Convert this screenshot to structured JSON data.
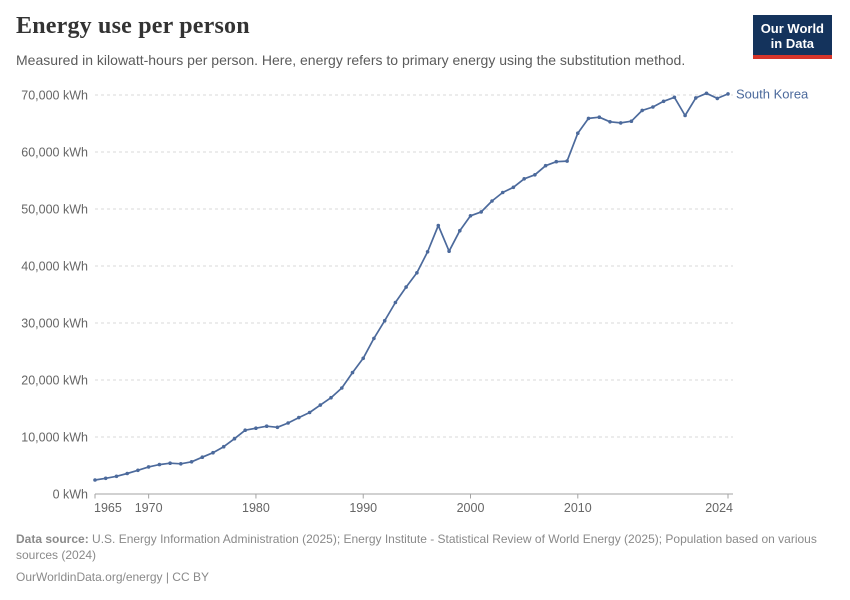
{
  "header": {
    "title": "Energy use per person",
    "subtitle": "Measured in kilowatt-hours per person. Here, energy refers to primary energy using the substitution method.",
    "logo": {
      "line1": "Our World",
      "line2": "in Data"
    }
  },
  "chart_data": {
    "type": "line",
    "title": "Energy use per person",
    "xlabel": "",
    "ylabel": "",
    "xlim": [
      1965,
      2024
    ],
    "ylim": [
      0,
      70000
    ],
    "x_ticks": [
      1965,
      1970,
      1980,
      1990,
      2000,
      2010,
      2024
    ],
    "y_ticks": [
      0,
      10000,
      20000,
      30000,
      40000,
      50000,
      60000,
      70000
    ],
    "y_tick_suffix": " kWh",
    "grid": "horizontal-dashed",
    "legend_position": "end-of-line-label",
    "series": [
      {
        "name": "South Korea",
        "color": "#4c6a9c",
        "x": [
          1965,
          1966,
          1967,
          1968,
          1969,
          1970,
          1971,
          1972,
          1973,
          1974,
          1975,
          1976,
          1977,
          1978,
          1979,
          1980,
          1981,
          1982,
          1983,
          1984,
          1985,
          1986,
          1987,
          1988,
          1989,
          1990,
          1991,
          1992,
          1993,
          1994,
          1995,
          1996,
          1997,
          1998,
          1999,
          2000,
          2001,
          2002,
          2003,
          2004,
          2005,
          2006,
          2007,
          2008,
          2009,
          2010,
          2011,
          2012,
          2013,
          2014,
          2015,
          2016,
          2017,
          2018,
          2019,
          2020,
          2021,
          2022,
          2023,
          2024
        ],
        "values": [
          2450,
          2750,
          3100,
          3600,
          4150,
          4750,
          5150,
          5400,
          5300,
          5650,
          6450,
          7250,
          8300,
          9700,
          11200,
          11550,
          11900,
          11700,
          12450,
          13400,
          14300,
          15600,
          16900,
          18600,
          21300,
          23800,
          27300,
          30400,
          33600,
          36300,
          38800,
          42500,
          47100,
          42600,
          46200,
          48800,
          49500,
          51400,
          52900,
          53800,
          55300,
          56000,
          57600,
          58300,
          58400,
          63300,
          65900,
          66100,
          65300,
          65100,
          65400,
          67300,
          67900,
          68900,
          69600,
          66400,
          69500,
          70300,
          69400,
          70200
        ]
      }
    ]
  },
  "footer": {
    "source_label": "Data source:",
    "source_text": " U.S. Energy Information Administration (2025); Energy Institute - Statistical Review of World Energy (2025); Population based on various sources (2024)",
    "license_text": "OurWorldinData.org/energy | CC BY"
  },
  "colors": {
    "line": "#4c6a9c",
    "grid": "#d9d9d9",
    "axis": "#a3a3a3",
    "axis_text": "#666666",
    "logo_bg": "#14335c",
    "logo_red": "#d7352a"
  }
}
